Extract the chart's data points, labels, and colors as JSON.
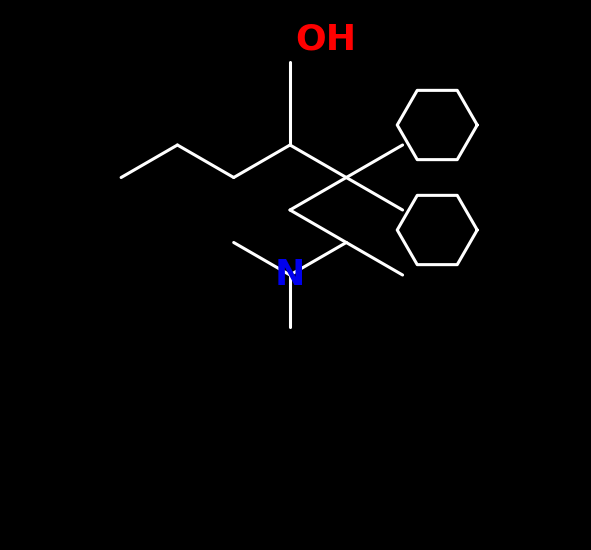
{
  "background_color": "#000000",
  "bond_color": "#ffffff",
  "OH_color": "#ff0000",
  "N_color": "#0000ee",
  "bond_width": 2.2,
  "font_size_OH": 26,
  "font_size_N": 26,
  "OH_label": "OH",
  "N_label": "N",
  "figsize": [
    5.91,
    5.5
  ],
  "dpi": 100
}
